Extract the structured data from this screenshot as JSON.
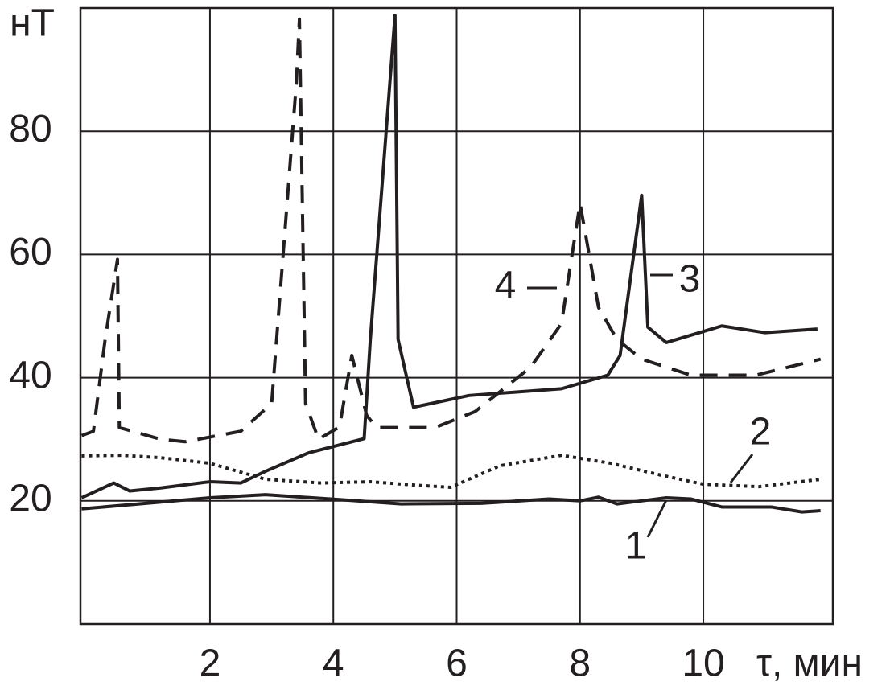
{
  "chart_data": {
    "type": "line",
    "x_label": "τ, мин",
    "y_label": "нТ",
    "xlim": [
      -0.1,
      12.1
    ],
    "ylim": [
      0,
      100
    ],
    "xticks": [
      2,
      4,
      6,
      8,
      10
    ],
    "yticks": [
      20,
      40,
      60,
      80
    ],
    "grid": true,
    "series": [
      {
        "name": "1",
        "color": "#231f20",
        "style": "solid",
        "x": [
          -0.08,
          2,
          2.9,
          4.1,
          5.1,
          6.4,
          7.5,
          8,
          8.3,
          8.6,
          9,
          9.4,
          9.8,
          10.3,
          11.1,
          11.6,
          11.9
        ],
        "values": [
          18.7,
          20.5,
          21,
          20.2,
          19.5,
          19.6,
          20.3,
          20,
          20.6,
          19.5,
          20,
          20.5,
          20.3,
          19,
          19,
          18.2,
          18.4
        ]
      },
      {
        "name": "2",
        "color": "#231f20",
        "style": "dotted",
        "x": [
          -0.08,
          0.57,
          1.2,
          2,
          2.9,
          3.8,
          4.6,
          5.4,
          5.9,
          6.7,
          7.7,
          8.5,
          9.3,
          10,
          10.9,
          11.9
        ],
        "values": [
          27.3,
          27.4,
          27,
          26.1,
          23.5,
          22.9,
          23.1,
          22.5,
          22.2,
          25.7,
          27.4,
          26.1,
          24.2,
          22.7,
          22.3,
          23.5
        ]
      },
      {
        "name": "3",
        "color": "#231f20",
        "style": "solid",
        "x": [
          -0.08,
          0.44,
          0.7,
          1.2,
          2,
          2.5,
          2.9,
          3.6,
          4.5,
          4.6,
          5,
          5.05,
          5.3,
          6.2,
          7.7,
          8.45,
          8.65,
          9,
          9.1,
          9.4,
          10.3,
          11,
          11.85
        ],
        "values": [
          20.5,
          22.9,
          21.6,
          22.1,
          23.1,
          22.9,
          24.8,
          27.8,
          30.1,
          46.2,
          98.8,
          46.2,
          35.2,
          37.1,
          38.2,
          40.4,
          43.6,
          69.6,
          48.2,
          45.7,
          48.4,
          47.3,
          47.9
        ]
      },
      {
        "name": "4",
        "color": "#231f20",
        "style": "dashed",
        "x": [
          -0.08,
          0.11,
          0.3,
          0.5,
          0.53,
          1.2,
          1.6,
          2.5,
          3,
          3.2,
          3.4,
          3.45,
          3.55,
          3.76,
          4.1,
          4.3,
          4.54,
          4.7,
          5.65,
          6.3,
          7.2,
          7.7,
          8,
          8.3,
          8.6,
          9,
          9.8,
          10.85,
          11.9
        ],
        "values": [
          30.6,
          31.3,
          46.2,
          59.2,
          31.9,
          30,
          29.6,
          31.3,
          35.8,
          61.8,
          87.8,
          98.2,
          35.8,
          30,
          32,
          43.6,
          33.9,
          31.9,
          31.9,
          34.5,
          41.7,
          48.8,
          68.3,
          51.4,
          46.2,
          43,
          40.4,
          40.4,
          43
        ]
      }
    ]
  }
}
